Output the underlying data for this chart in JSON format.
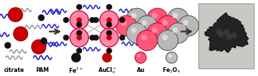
{
  "bg_color": "#ffffff",
  "pam_color": "#2222cc",
  "citrate_color": "#888888",
  "fe3_color": "#111111",
  "aucl4_color": "#cc0000",
  "au_fc": "#ff5577",
  "au_ec": "#cc0033",
  "fe3o4_fc": "#c0c0c0",
  "fe3o4_ec": "#555555",
  "legend_labels": [
    "citrate",
    "PAM",
    "Fe$^{3+}$",
    "AuCl$_4^-$",
    "Au",
    "Fe$_3$O$_4$"
  ],
  "legend_fontsize": 5.8,
  "fig_w": 3.77,
  "fig_h": 1.13,
  "dpi": 100
}
